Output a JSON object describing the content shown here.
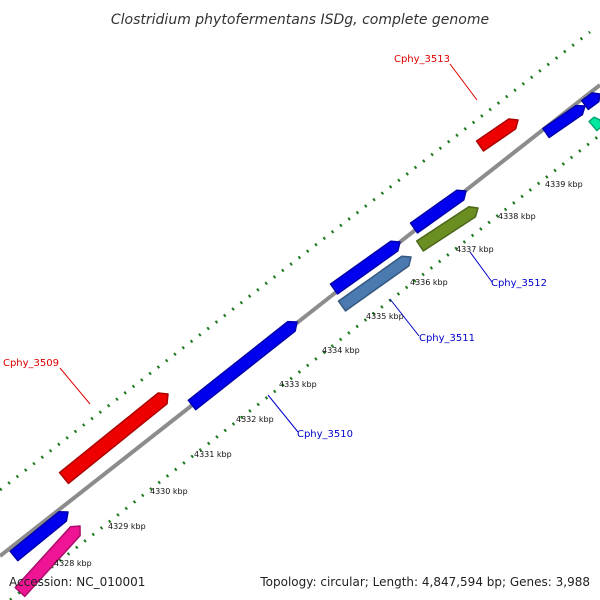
{
  "title": "Clostridium phytofermentans ISDg, complete genome",
  "footer": {
    "accession": "Accession: NC_010001",
    "stats": "Topology: circular; Length: 4,847,594 bp; Genes: 3,988"
  },
  "colors": {
    "backbone": "#8c8c8c",
    "tick_dot": "#1f7a1f",
    "gene_label_forward": "#dd0000",
    "gene_label_reverse": "#0000cc",
    "callout_forward": "#dd0000",
    "callout_reverse": "#0000cc"
  },
  "tick_labels": [
    "4328 kbp",
    "4329 kbp",
    "4330 kbp",
    "4331 kbp",
    "4332 kbp",
    "4333 kbp",
    "4334 kbp",
    "4335 kbp",
    "4336 kbp",
    "4337 kbp",
    "4338 kbp",
    "4339 kbp"
  ],
  "gene_labels": [
    {
      "text": "Cphy_3513",
      "strand": "forward"
    },
    {
      "text": "Cphy_3512",
      "strand": "reverse"
    },
    {
      "text": "Cphy_3511",
      "strand": "reverse"
    },
    {
      "text": "Cphy_3510",
      "strand": "reverse"
    },
    {
      "text": "Cphy_3509",
      "strand": "forward"
    }
  ],
  "genes": [
    {
      "strand": "forward",
      "color": "#ee0000"
    },
    {
      "strand": "forward",
      "color": "#ee0000"
    },
    {
      "strand": "reverse",
      "color": "#0000ee"
    },
    {
      "strand": "reverse",
      "color": "#0000ee"
    },
    {
      "strand": "reverse",
      "color": "#0000ee"
    },
    {
      "strand": "reverse",
      "color": "#0000ee"
    },
    {
      "strand": "reverse",
      "color": "#0000ee"
    },
    {
      "strand": "reverse",
      "color": "#0000ee"
    },
    {
      "strand": "reverse",
      "color": "#4a7ab0"
    },
    {
      "strand": "reverse",
      "color": "#6b8e23"
    },
    {
      "strand": "reverse",
      "color": "#ee1493"
    },
    {
      "strand": "reverse",
      "color": "#00e8a0"
    }
  ]
}
